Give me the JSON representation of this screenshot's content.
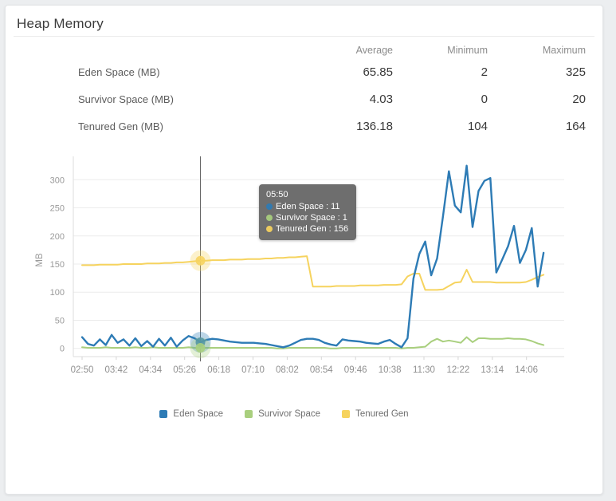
{
  "card": {
    "title": "Heap Memory"
  },
  "stats": {
    "headers": {
      "avg": "Average",
      "min": "Minimum",
      "max": "Maximum"
    },
    "rows": [
      {
        "label": "Eden Space (MB)",
        "avg": "65.85",
        "min": "2",
        "max": "325"
      },
      {
        "label": "Survivor Space (MB)",
        "avg": "4.03",
        "min": "0",
        "max": "20"
      },
      {
        "label": "Tenured Gen (MB)",
        "avg": "136.18",
        "min": "104",
        "max": "164"
      }
    ]
  },
  "tooltip": {
    "time": "05:50",
    "items": [
      {
        "label": "Eden Space",
        "value": 11
      },
      {
        "label": "Survivor Space",
        "value": 1
      },
      {
        "label": "Tenured Gen",
        "value": 156
      }
    ]
  },
  "chart_data": {
    "type": "line",
    "ylabel": "MB",
    "ylim": [
      0,
      335
    ],
    "grid": true,
    "legend_position": "bottom",
    "y_ticks": [
      0,
      50,
      100,
      150,
      200,
      250,
      300
    ],
    "x_ticks": [
      "02:50",
      "03:42",
      "04:34",
      "05:26",
      "06:18",
      "07:10",
      "08:02",
      "08:54",
      "09:46",
      "10:38",
      "11:30",
      "12:22",
      "13:14",
      "14:06"
    ],
    "start_time": "02:50",
    "interval_minutes": 9,
    "series": [
      {
        "name": "Eden Space",
        "color": "#2d7bb5",
        "values": [
          20,
          8,
          5,
          16,
          6,
          24,
          10,
          16,
          5,
          18,
          4,
          13,
          3,
          17,
          5,
          19,
          3,
          14,
          22,
          18,
          11,
          15,
          17,
          16,
          14,
          12,
          11,
          10,
          10,
          10,
          9,
          8,
          6,
          4,
          2,
          5,
          10,
          15,
          17,
          17,
          15,
          10,
          7,
          5,
          16,
          14,
          13,
          12,
          10,
          9,
          8,
          12,
          15,
          8,
          2,
          18,
          124,
          168,
          190,
          130,
          160,
          235,
          315,
          254,
          242,
          325,
          216,
          280,
          298,
          303,
          135,
          158,
          182,
          218,
          152,
          175,
          214,
          110,
          170
        ]
      },
      {
        "name": "Survivor Space",
        "color": "#a9cf7e",
        "values": [
          2,
          1,
          1,
          1,
          2,
          1,
          1,
          1,
          1,
          2,
          1,
          1,
          2,
          1,
          1,
          1,
          1,
          1,
          2,
          1,
          1,
          1,
          1,
          1,
          1,
          1,
          1,
          1,
          1,
          1,
          1,
          1,
          1,
          0,
          0,
          1,
          1,
          1,
          1,
          1,
          1,
          1,
          0,
          0,
          1,
          1,
          1,
          1,
          1,
          1,
          1,
          1,
          1,
          1,
          0,
          1,
          1,
          2,
          3,
          12,
          17,
          12,
          14,
          12,
          10,
          20,
          11,
          18,
          18,
          17,
          17,
          17,
          18,
          17,
          17,
          16,
          13,
          9,
          6
        ]
      },
      {
        "name": "Tenured Gen",
        "color": "#f6d35e",
        "values": [
          148,
          148,
          148,
          149,
          149,
          149,
          149,
          150,
          150,
          150,
          150,
          151,
          151,
          151,
          152,
          152,
          153,
          153,
          154,
          155,
          156,
          156,
          157,
          157,
          157,
          158,
          158,
          158,
          159,
          159,
          159,
          160,
          160,
          161,
          161,
          162,
          162,
          163,
          164,
          110,
          110,
          110,
          110,
          111,
          111,
          111,
          111,
          112,
          112,
          112,
          112,
          113,
          113,
          113,
          114,
          128,
          133,
          133,
          104,
          104,
          104,
          105,
          111,
          117,
          118,
          140,
          118,
          118,
          118,
          118,
          117,
          117,
          117,
          117,
          117,
          118,
          122,
          127,
          131
        ]
      }
    ]
  }
}
